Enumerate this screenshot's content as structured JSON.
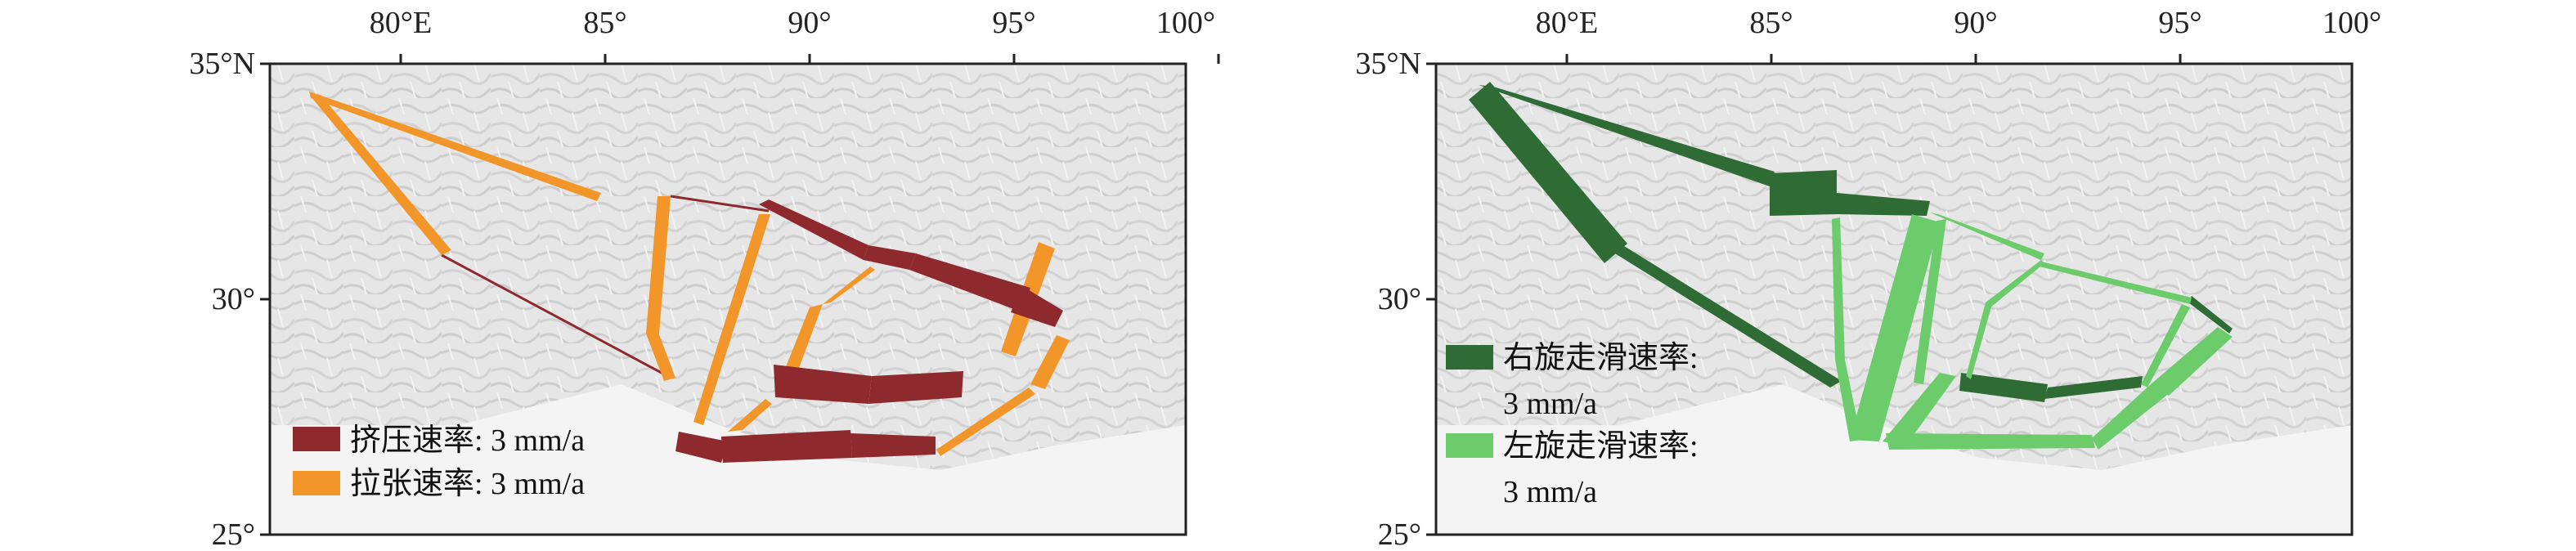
{
  "left_map": {
    "lon_labels": [
      "80°E",
      "85°",
      "90°",
      "95°",
      "100°"
    ],
    "lat_labels": [
      "35°N",
      "30°",
      "25°"
    ],
    "legend": [
      {
        "label": "挤压速率: 3 mm/a",
        "color": "#8e2a2e"
      },
      {
        "label": "拉张速率: 3 mm/a",
        "color": "#f2962a"
      }
    ]
  },
  "right_map": {
    "lon_labels": [
      "80°E",
      "85°",
      "90°",
      "95°",
      "100°"
    ],
    "lat_labels": [
      "35°N",
      "30°",
      "25°"
    ],
    "legend": [
      {
        "label_line1": "右旋走滑速率:",
        "label_line2": "3 mm/a",
        "color": "#2e6b35"
      },
      {
        "label_line1": "左旋走滑速率:",
        "label_line2": "3 mm/a",
        "color": "#6ccc6c"
      }
    ]
  },
  "colors": {
    "compression": "#8e2a2e",
    "extension": "#f2962a",
    "dextral": "#2e6b35",
    "sinistral": "#6ccc6c",
    "terrain": "#e3e3e3"
  }
}
